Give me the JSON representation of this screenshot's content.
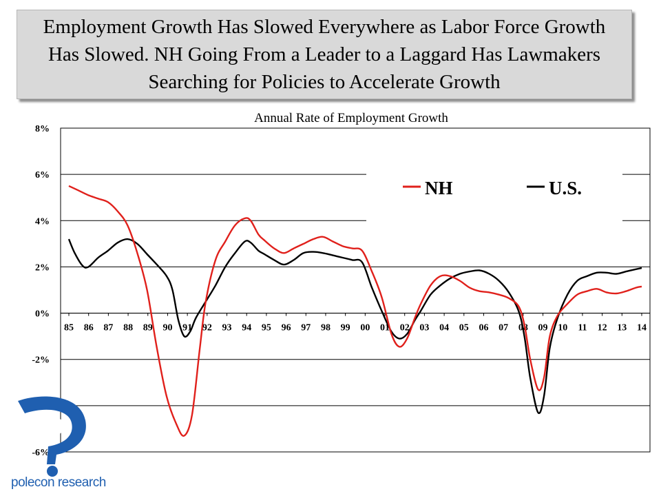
{
  "slide_title": "Employment Growth Has Slowed Everywhere as Labor Force Growth Has Slowed. NH Going From a Leader to a Laggard Has Lawmakers Searching for Policies to Accelerate Growth",
  "logo": {
    "text": "polecon research",
    "icon": "polecon-logo-icon",
    "color": "#1f5fb0"
  },
  "chart_data": {
    "type": "line",
    "title": "Annual Rate of Employment Growth",
    "xlabel": "",
    "ylabel": "",
    "x_start": 1985,
    "x_end": 2014.3,
    "ylim": [
      -6,
      8
    ],
    "y_ticks": [
      8,
      6,
      4,
      2,
      0,
      -2,
      -4,
      -6
    ],
    "y_tick_labels": [
      "8%",
      "6%",
      "4%",
      "2%",
      "0%",
      "-2%",
      "-4%",
      "-6%"
    ],
    "x_tick_labels": [
      "85",
      "86",
      "87",
      "88",
      "89",
      "90",
      "91",
      "92",
      "93",
      "94",
      "95",
      "96",
      "97",
      "98",
      "99",
      "00",
      "01",
      "02",
      "03",
      "04",
      "05",
      "06",
      "07",
      "08",
      "09",
      "10",
      "11",
      "12",
      "13",
      "14"
    ],
    "grid": "horizontal",
    "legend_position": "top-right",
    "series": [
      {
        "name": "NH",
        "color": "#e0201b",
        "points": [
          [
            1985.0,
            5.5
          ],
          [
            1985.5,
            5.3
          ],
          [
            1986.0,
            5.1
          ],
          [
            1986.5,
            4.95
          ],
          [
            1987.0,
            4.8
          ],
          [
            1987.5,
            4.4
          ],
          [
            1988.0,
            3.8
          ],
          [
            1988.5,
            2.6
          ],
          [
            1989.0,
            1.0
          ],
          [
            1989.5,
            -1.5
          ],
          [
            1990.0,
            -3.6
          ],
          [
            1990.5,
            -4.8
          ],
          [
            1990.9,
            -5.3
          ],
          [
            1991.3,
            -4.4
          ],
          [
            1991.7,
            -1.5
          ],
          [
            1992.0,
            0.5
          ],
          [
            1992.5,
            2.3
          ],
          [
            1993.0,
            3.1
          ],
          [
            1993.5,
            3.8
          ],
          [
            1994.0,
            4.1
          ],
          [
            1994.3,
            4.0
          ],
          [
            1994.7,
            3.4
          ],
          [
            1995.0,
            3.15
          ],
          [
            1995.5,
            2.8
          ],
          [
            1996.0,
            2.6
          ],
          [
            1996.5,
            2.8
          ],
          [
            1997.0,
            3.0
          ],
          [
            1997.5,
            3.2
          ],
          [
            1998.0,
            3.3
          ],
          [
            1998.5,
            3.1
          ],
          [
            1999.0,
            2.9
          ],
          [
            1999.5,
            2.8
          ],
          [
            2000.0,
            2.7
          ],
          [
            2000.5,
            1.8
          ],
          [
            2001.0,
            0.7
          ],
          [
            2001.5,
            -0.9
          ],
          [
            2001.9,
            -1.45
          ],
          [
            2002.3,
            -1.1
          ],
          [
            2002.7,
            -0.2
          ],
          [
            2003.0,
            0.4
          ],
          [
            2003.5,
            1.2
          ],
          [
            2004.0,
            1.6
          ],
          [
            2004.5,
            1.6
          ],
          [
            2005.0,
            1.4
          ],
          [
            2005.5,
            1.1
          ],
          [
            2006.0,
            0.95
          ],
          [
            2006.5,
            0.9
          ],
          [
            2007.0,
            0.8
          ],
          [
            2007.5,
            0.65
          ],
          [
            2008.0,
            0.3
          ],
          [
            2008.3,
            -0.5
          ],
          [
            2008.6,
            -2.0
          ],
          [
            2009.0,
            -3.3
          ],
          [
            2009.3,
            -2.8
          ],
          [
            2009.6,
            -1.0
          ],
          [
            2010.0,
            -0.1
          ],
          [
            2010.5,
            0.4
          ],
          [
            2011.0,
            0.8
          ],
          [
            2011.5,
            0.95
          ],
          [
            2012.0,
            1.05
          ],
          [
            2012.5,
            0.9
          ],
          [
            2013.0,
            0.85
          ],
          [
            2013.5,
            0.95
          ],
          [
            2014.0,
            1.1
          ],
          [
            2014.3,
            1.15
          ]
        ]
      },
      {
        "name": "U.S.",
        "color": "#000000",
        "points": [
          [
            1985.0,
            3.2
          ],
          [
            1985.3,
            2.6
          ],
          [
            1985.7,
            2.05
          ],
          [
            1986.0,
            2.0
          ],
          [
            1986.5,
            2.4
          ],
          [
            1987.0,
            2.7
          ],
          [
            1987.5,
            3.05
          ],
          [
            1988.0,
            3.2
          ],
          [
            1988.5,
            3.0
          ],
          [
            1989.0,
            2.55
          ],
          [
            1989.5,
            2.1
          ],
          [
            1990.0,
            1.6
          ],
          [
            1990.3,
            1.0
          ],
          [
            1990.6,
            -0.3
          ],
          [
            1990.9,
            -1.0
          ],
          [
            1991.2,
            -0.8
          ],
          [
            1991.5,
            -0.2
          ],
          [
            1992.0,
            0.5
          ],
          [
            1992.5,
            1.2
          ],
          [
            1993.0,
            2.0
          ],
          [
            1993.5,
            2.6
          ],
          [
            1994.0,
            3.1
          ],
          [
            1994.3,
            3.05
          ],
          [
            1994.7,
            2.7
          ],
          [
            1995.0,
            2.55
          ],
          [
            1995.5,
            2.3
          ],
          [
            1996.0,
            2.1
          ],
          [
            1996.5,
            2.3
          ],
          [
            1997.0,
            2.6
          ],
          [
            1997.5,
            2.65
          ],
          [
            1998.0,
            2.6
          ],
          [
            1998.5,
            2.5
          ],
          [
            1999.0,
            2.4
          ],
          [
            1999.5,
            2.3
          ],
          [
            2000.0,
            2.2
          ],
          [
            2000.5,
            1.1
          ],
          [
            2001.0,
            0.1
          ],
          [
            2001.5,
            -0.8
          ],
          [
            2001.9,
            -1.1
          ],
          [
            2002.3,
            -0.9
          ],
          [
            2002.7,
            -0.3
          ],
          [
            2003.0,
            0.1
          ],
          [
            2003.5,
            0.8
          ],
          [
            2004.0,
            1.2
          ],
          [
            2004.5,
            1.5
          ],
          [
            2005.0,
            1.7
          ],
          [
            2005.5,
            1.8
          ],
          [
            2006.0,
            1.85
          ],
          [
            2006.5,
            1.7
          ],
          [
            2007.0,
            1.4
          ],
          [
            2007.5,
            0.9
          ],
          [
            2008.0,
            0.1
          ],
          [
            2008.3,
            -1.0
          ],
          [
            2008.6,
            -2.8
          ],
          [
            2009.0,
            -4.3
          ],
          [
            2009.3,
            -3.6
          ],
          [
            2009.6,
            -1.5
          ],
          [
            2010.0,
            -0.2
          ],
          [
            2010.5,
            0.8
          ],
          [
            2011.0,
            1.4
          ],
          [
            2011.5,
            1.6
          ],
          [
            2012.0,
            1.75
          ],
          [
            2012.5,
            1.75
          ],
          [
            2013.0,
            1.7
          ],
          [
            2013.5,
            1.8
          ],
          [
            2014.0,
            1.9
          ],
          [
            2014.3,
            1.95
          ]
        ]
      }
    ]
  }
}
